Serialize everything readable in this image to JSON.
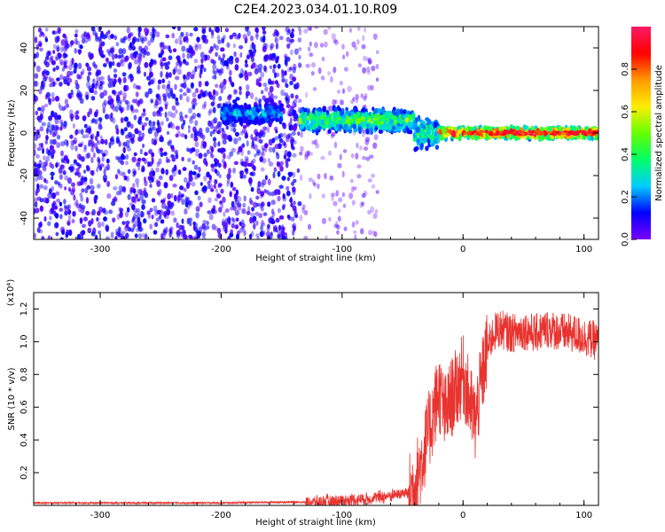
{
  "title": "C2E4.2023.034.01.10.R09",
  "colors": {
    "snr_line": "#e8332f",
    "spectrogram_low": "#7b00ff",
    "spectrogram_high": "#ff0000"
  },
  "chart_data": [
    {
      "type": "heatmap",
      "xlabel": "Height of straight line (km)",
      "ylabel": "Frequency (Hz)",
      "xlim": [
        -355,
        112
      ],
      "ylim": [
        -50,
        50
      ],
      "xticks": [
        "-300",
        "-200",
        "-100",
        "0",
        "100"
      ],
      "xtick_values": [
        -300,
        -200,
        -100,
        0,
        100
      ],
      "yticks": [
        "-40",
        "-20",
        "0",
        "20",
        "40"
      ],
      "ytick_values": [
        -40,
        -20,
        0,
        20,
        40
      ],
      "colorbar": {
        "label": "Normalized spectral amplitude",
        "range": [
          0,
          1
        ],
        "ticks": [
          "0.0",
          "0.2",
          "0.4",
          "0.6",
          "0.8"
        ],
        "tick_values": [
          0.0,
          0.2,
          0.4,
          0.6,
          0.8
        ],
        "colormap": [
          "#7b00ff",
          "#0000ff",
          "#00ccff",
          "#00ff66",
          "#66ff00",
          "#ffee00",
          "#ff9900",
          "#ff0000",
          "#ff1a66"
        ]
      },
      "regions": [
        {
          "x": [
            -355,
            -135
          ],
          "freq_center": 0,
          "freq_halfwidth": 50,
          "amplitude": 0.08
        },
        {
          "x": [
            -135,
            -70
          ],
          "freq_center": 0,
          "freq_halfwidth": 50,
          "amplitude": 0.03
        },
        {
          "x": [
            -200,
            -150
          ],
          "freq_center": 9,
          "freq_halfwidth": 5,
          "amplitude": 0.2
        },
        {
          "x": [
            -135,
            -40
          ],
          "freq_center": 6,
          "freq_halfwidth": 6,
          "amplitude": 0.35
        },
        {
          "x": [
            -40,
            -20
          ],
          "freq_center": 0,
          "freq_halfwidth": 8,
          "amplitude": 0.3
        },
        {
          "x": [
            -20,
            112
          ],
          "freq_center": 0,
          "freq_halfwidth": 3,
          "amplitude": 0.7
        }
      ]
    },
    {
      "type": "line",
      "xlabel": "Height of straight line (km)",
      "ylabel": "SNR (10 * v/v)",
      "y_multiplier": "(x10⁴)",
      "xlim": [
        -355,
        112
      ],
      "ylim": [
        0,
        1.3
      ],
      "xticks": [
        "-300",
        "-200",
        "-100",
        "0",
        "100"
      ],
      "xtick_values": [
        -300,
        -200,
        -100,
        0,
        100
      ],
      "yticks": [
        "0.2",
        "0.4",
        "0.6",
        "0.8",
        "1.0",
        "1.2"
      ],
      "ytick_values": [
        0.2,
        0.4,
        0.6,
        0.8,
        1.0,
        1.2
      ],
      "series": [
        {
          "x": [
            -355,
            -300,
            -250,
            -200,
            -150,
            -120,
            -100,
            -80,
            -60,
            -45,
            -40,
            -35,
            -30,
            -25,
            -20,
            -15,
            -10,
            -5,
            0,
            5,
            10,
            15,
            20,
            25,
            30,
            40,
            50,
            60,
            70,
            80,
            90,
            100,
            112
          ],
          "values": [
            0.015,
            0.015,
            0.015,
            0.015,
            0.02,
            0.02,
            0.03,
            0.04,
            0.06,
            0.08,
            0.12,
            0.25,
            0.4,
            0.55,
            0.7,
            0.55,
            0.65,
            0.72,
            0.8,
            0.65,
            0.5,
            0.75,
            0.95,
            1.05,
            1.08,
            1.05,
            1.07,
            1.05,
            1.08,
            1.06,
            1.05,
            1.03,
            1.0
          ]
        }
      ]
    }
  ]
}
